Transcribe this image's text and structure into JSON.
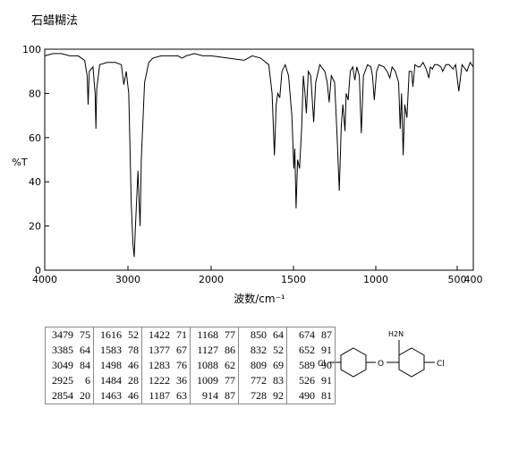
{
  "chart_data": {
    "type": "line",
    "title": "石蜡糊法",
    "xlabel": "波数/cm⁻¹",
    "ylabel": "%T",
    "color": "#000000",
    "xlim": [
      4000,
      400
    ],
    "ylim": [
      0,
      100
    ],
    "xticks": [
      4000,
      3000,
      2000,
      1500,
      1000,
      500,
      400
    ],
    "yticks": [
      0,
      20,
      40,
      60,
      80,
      100
    ],
    "x": [
      4000,
      3900,
      3800,
      3700,
      3600,
      3520,
      3490,
      3479,
      3465,
      3420,
      3395,
      3385,
      3375,
      3340,
      3250,
      3150,
      3080,
      3049,
      3020,
      2990,
      2960,
      2940,
      2925,
      2910,
      2880,
      2870,
      2854,
      2840,
      2800,
      2750,
      2700,
      2600,
      2500,
      2400,
      2350,
      2300,
      2200,
      2100,
      2000,
      1900,
      1800,
      1750,
      1700,
      1650,
      1630,
      1616,
      1605,
      1595,
      1583,
      1570,
      1550,
      1530,
      1510,
      1498,
      1492,
      1484,
      1475,
      1463,
      1450,
      1440,
      1430,
      1422,
      1410,
      1395,
      1377,
      1365,
      1340,
      1310,
      1295,
      1283,
      1270,
      1250,
      1235,
      1222,
      1210,
      1200,
      1187,
      1180,
      1168,
      1155,
      1140,
      1127,
      1115,
      1100,
      1088,
      1075,
      1050,
      1030,
      1020,
      1009,
      995,
      980,
      950,
      930,
      914,
      900,
      880,
      860,
      850,
      842,
      832,
      822,
      809,
      795,
      780,
      772,
      760,
      740,
      728,
      710,
      690,
      674,
      665,
      652,
      640,
      620,
      600,
      589,
      570,
      550,
      526,
      510,
      490,
      470,
      440,
      420,
      400
    ],
    "values": [
      97,
      98,
      98,
      97,
      97,
      95,
      88,
      75,
      90,
      92,
      80,
      64,
      82,
      93,
      94,
      94,
      93,
      84,
      90,
      80,
      30,
      12,
      6,
      20,
      45,
      35,
      20,
      50,
      85,
      94,
      96,
      97,
      97,
      97,
      96,
      97,
      98,
      97,
      97,
      96,
      95,
      97,
      96,
      93,
      80,
      52,
      75,
      80,
      78,
      90,
      93,
      88,
      70,
      46,
      55,
      28,
      50,
      46,
      65,
      88,
      80,
      71,
      90,
      88,
      67,
      85,
      93,
      90,
      85,
      76,
      88,
      85,
      60,
      36,
      65,
      75,
      63,
      80,
      77,
      90,
      92,
      86,
      92,
      88,
      62,
      88,
      93,
      92,
      88,
      77,
      90,
      93,
      92,
      90,
      87,
      92,
      90,
      85,
      64,
      80,
      52,
      75,
      69,
      90,
      90,
      83,
      93,
      92,
      92,
      94,
      91,
      87,
      92,
      91,
      93,
      93,
      92,
      90,
      93,
      93,
      91,
      93,
      81,
      93,
      90,
      94,
      92
    ]
  },
  "table": {
    "rows": [
      [
        [
          3479,
          75
        ],
        [
          1616,
          52
        ],
        [
          1422,
          71
        ],
        [
          1168,
          77
        ],
        [
          850,
          64
        ],
        [
          674,
          87
        ]
      ],
      [
        [
          3385,
          64
        ],
        [
          1583,
          78
        ],
        [
          1377,
          67
        ],
        [
          1127,
          86
        ],
        [
          832,
          52
        ],
        [
          652,
          91
        ]
      ],
      [
        [
          3049,
          84
        ],
        [
          1498,
          46
        ],
        [
          1283,
          76
        ],
        [
          1088,
          62
        ],
        [
          809,
          69
        ],
        [
          589,
          90
        ]
      ],
      [
        [
          2925,
          6
        ],
        [
          1484,
          28
        ],
        [
          1222,
          36
        ],
        [
          1009,
          77
        ],
        [
          772,
          83
        ],
        [
          526,
          91
        ]
      ],
      [
        [
          2854,
          20
        ],
        [
          1463,
          46
        ],
        [
          1187,
          63
        ],
        [
          914,
          87
        ],
        [
          728,
          92
        ],
        [
          490,
          81
        ]
      ]
    ]
  },
  "structure": {
    "labels": [
      "Cl",
      "O",
      "H2N",
      "Cl"
    ]
  }
}
